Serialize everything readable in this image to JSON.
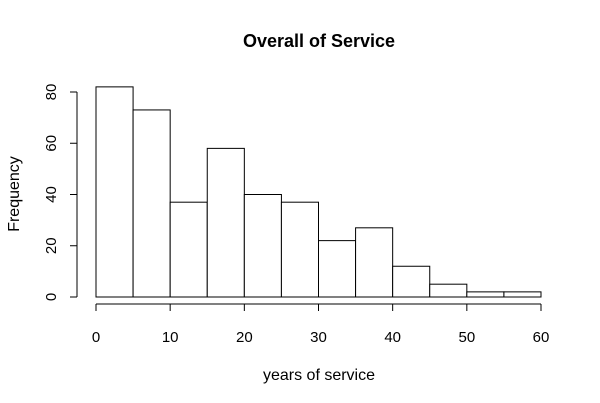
{
  "chart_data": {
    "type": "bar",
    "title": "Overall of Service",
    "xlabel": "years of service",
    "ylabel": "Frequency",
    "bins": [
      {
        "start": 0,
        "end": 5,
        "value": 82
      },
      {
        "start": 5,
        "end": 10,
        "value": 73
      },
      {
        "start": 10,
        "end": 15,
        "value": 37
      },
      {
        "start": 15,
        "end": 20,
        "value": 58
      },
      {
        "start": 20,
        "end": 25,
        "value": 40
      },
      {
        "start": 25,
        "end": 30,
        "value": 37
      },
      {
        "start": 30,
        "end": 35,
        "value": 22
      },
      {
        "start": 35,
        "end": 40,
        "value": 27
      },
      {
        "start": 40,
        "end": 45,
        "value": 12
      },
      {
        "start": 45,
        "end": 50,
        "value": 5
      },
      {
        "start": 50,
        "end": 55,
        "value": 2
      },
      {
        "start": 55,
        "end": 60,
        "value": 2
      }
    ],
    "xlim": [
      0,
      60
    ],
    "ylim": [
      0,
      85
    ],
    "xticks": [
      0,
      10,
      20,
      30,
      40,
      50,
      60
    ],
    "yticks": [
      0,
      20,
      40,
      60,
      80
    ],
    "grid": false,
    "legend": "none",
    "colors": {
      "bar_fill": "#ffffff",
      "bar_stroke": "#000000"
    }
  }
}
